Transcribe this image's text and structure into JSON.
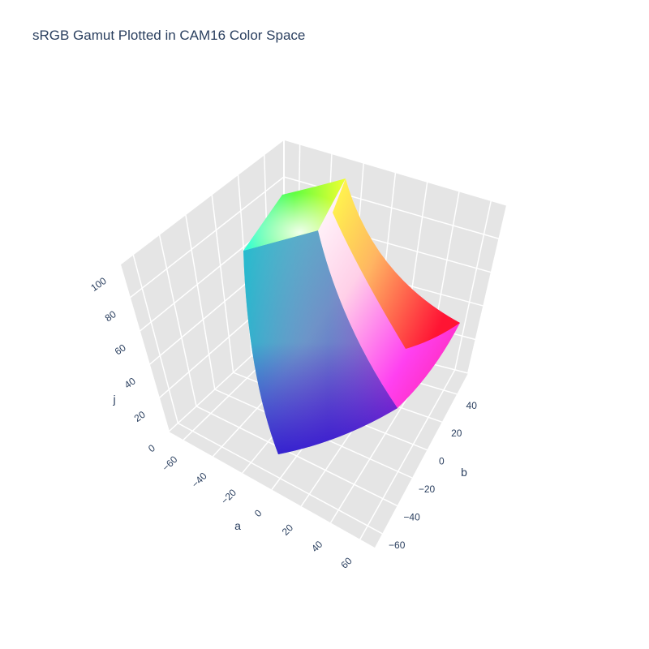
{
  "chart_data": {
    "type": "surface3d",
    "title": "sRGB Gamut Plotted in CAM16 Color Space",
    "axes": {
      "a": {
        "label": "a",
        "ticks": [
          -60,
          -40,
          -20,
          0,
          20,
          40,
          60
        ],
        "range": [
          -70,
          70
        ]
      },
      "b": {
        "label": "b",
        "ticks": [
          -60,
          -40,
          -20,
          0,
          20,
          40
        ],
        "range": [
          -70,
          55
        ]
      },
      "j": {
        "label": "j",
        "ticks": [
          0,
          20,
          40,
          60,
          80,
          100
        ],
        "range": [
          0,
          100
        ]
      }
    },
    "grid": true,
    "background": "#e5e5e5",
    "gridline_color": "#ffffff",
    "surface": {
      "description_colors": {
        "white": "#ffffff",
        "black_corner": "#000000",
        "red": "#ff0000",
        "yellow": "#ffff00",
        "green": "#00ff00",
        "cyan": "#00ffff",
        "blue": "#0000ff",
        "magenta": "#ff00ff"
      }
    }
  }
}
